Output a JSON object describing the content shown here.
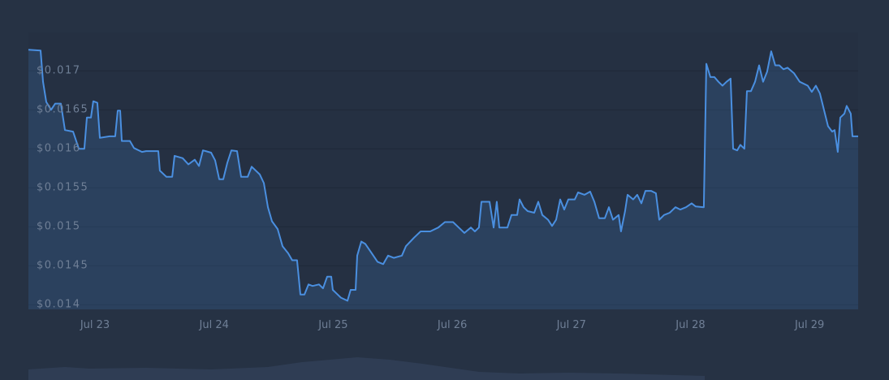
{
  "chart_data": {
    "type": "area",
    "color": "#4a8fe0",
    "xlim": [
      22.441,
      29.408
    ],
    "ylim": [
      0.01394,
      0.01744
    ],
    "xticks": [
      {
        "value": 23,
        "label": "Jul 23"
      },
      {
        "value": 24,
        "label": "Jul 24"
      },
      {
        "value": 25,
        "label": "Jul 25"
      },
      {
        "value": 26,
        "label": "Jul 26"
      },
      {
        "value": 27,
        "label": "Jul 27"
      },
      {
        "value": 28,
        "label": "Jul 28"
      },
      {
        "value": 29,
        "label": "Jul 29"
      }
    ],
    "yticks": [
      {
        "value": 0.014,
        "label": "$0.014"
      },
      {
        "value": 0.0145,
        "label": "$0.0145"
      },
      {
        "value": 0.015,
        "label": "$0.015"
      },
      {
        "value": 0.0155,
        "label": "$0.0155"
      },
      {
        "value": 0.016,
        "label": "$0.016"
      },
      {
        "value": 0.0165,
        "label": "$0.0165"
      },
      {
        "value": 0.017,
        "label": "$0.017"
      }
    ],
    "grid": true,
    "x": [
      22.441,
      22.543,
      22.564,
      22.591,
      22.632,
      22.666,
      22.714,
      22.748,
      22.816,
      22.864,
      22.911,
      22.932,
      22.966,
      22.986,
      23.02,
      23.041,
      23.123,
      23.17,
      23.191,
      23.211,
      23.225,
      23.293,
      23.327,
      23.395,
      23.429,
      23.532,
      23.545,
      23.6,
      23.648,
      23.668,
      23.736,
      23.784,
      23.838,
      23.873,
      23.907,
      23.975,
      24.009,
      24.043,
      24.077,
      24.111,
      24.145,
      24.193,
      24.227,
      24.282,
      24.316,
      24.384,
      24.418,
      24.452,
      24.486,
      24.534,
      24.575,
      24.622,
      24.656,
      24.697,
      24.725,
      24.759,
      24.793,
      24.827,
      24.881,
      24.915,
      24.95,
      24.984,
      24.997,
      25.031,
      25.065,
      25.12,
      25.147,
      25.188,
      25.202,
      25.236,
      25.27,
      25.324,
      25.372,
      25.42,
      25.461,
      25.509,
      25.577,
      25.611,
      25.679,
      25.734,
      25.815,
      25.883,
      25.938,
      26.006,
      26.054,
      26.102,
      26.156,
      26.19,
      26.224,
      26.245,
      26.313,
      26.347,
      26.374,
      26.395,
      26.463,
      26.497,
      26.545,
      26.565,
      26.599,
      26.633,
      26.688,
      26.722,
      26.756,
      26.804,
      26.838,
      26.872,
      26.906,
      26.94,
      26.974,
      27.029,
      27.056,
      27.111,
      27.158,
      27.193,
      27.233,
      27.281,
      27.315,
      27.349,
      27.397,
      27.417,
      27.451,
      27.472,
      27.519,
      27.553,
      27.588,
      27.622,
      27.67,
      27.71,
      27.738,
      27.778,
      27.826,
      27.874,
      27.915,
      27.963,
      28.01,
      28.044,
      28.112,
      28.133,
      28.167,
      28.201,
      28.235,
      28.269,
      28.303,
      28.337,
      28.358,
      28.392,
      28.419,
      28.453,
      28.474,
      28.508,
      28.542,
      28.576,
      28.61,
      28.644,
      28.678,
      28.712,
      28.746,
      28.781,
      28.815,
      28.869,
      28.917,
      28.985,
      29.019,
      29.053,
      29.087,
      29.121,
      29.155,
      29.19,
      29.21,
      29.237,
      29.258,
      29.292,
      29.312,
      29.346,
      29.36,
      29.408
    ],
    "values": [
      0.01727,
      0.01726,
      0.01686,
      0.0166,
      0.0165,
      0.01658,
      0.01658,
      0.01624,
      0.01622,
      0.016,
      0.016,
      0.0164,
      0.0164,
      0.01661,
      0.01659,
      0.01614,
      0.01616,
      0.01616,
      0.01649,
      0.01649,
      0.0161,
      0.0161,
      0.01601,
      0.01596,
      0.01597,
      0.01597,
      0.01572,
      0.01564,
      0.01564,
      0.01591,
      0.01588,
      0.0158,
      0.01586,
      0.01578,
      0.01598,
      0.01595,
      0.01585,
      0.01561,
      0.01561,
      0.01582,
      0.01598,
      0.01597,
      0.01564,
      0.01564,
      0.01577,
      0.01567,
      0.01556,
      0.01525,
      0.01507,
      0.01497,
      0.01475,
      0.01466,
      0.01457,
      0.01457,
      0.01413,
      0.01413,
      0.01426,
      0.01424,
      0.01426,
      0.01421,
      0.01436,
      0.01436,
      0.01419,
      0.01414,
      0.01409,
      0.01405,
      0.01419,
      0.01419,
      0.01463,
      0.01481,
      0.01478,
      0.01466,
      0.01455,
      0.01452,
      0.01463,
      0.0146,
      0.01463,
      0.01475,
      0.01486,
      0.01494,
      0.01494,
      0.01499,
      0.01506,
      0.01506,
      0.01499,
      0.01492,
      0.01499,
      0.01494,
      0.01499,
      0.01532,
      0.01532,
      0.01499,
      0.01532,
      0.01499,
      0.01499,
      0.01515,
      0.01515,
      0.01535,
      0.01525,
      0.0152,
      0.01518,
      0.01532,
      0.01515,
      0.01509,
      0.01501,
      0.01509,
      0.01535,
      0.01522,
      0.01535,
      0.01535,
      0.01544,
      0.01541,
      0.01545,
      0.01532,
      0.01511,
      0.01511,
      0.01525,
      0.01509,
      0.01515,
      0.01494,
      0.0152,
      0.01541,
      0.01535,
      0.01541,
      0.0153,
      0.01546,
      0.01546,
      0.01543,
      0.01509,
      0.01515,
      0.01518,
      0.01525,
      0.01522,
      0.01525,
      0.0153,
      0.01526,
      0.01525,
      0.01709,
      0.01692,
      0.01692,
      0.01686,
      0.01681,
      0.01686,
      0.0169,
      0.016,
      0.01598,
      0.01605,
      0.016,
      0.01674,
      0.01674,
      0.01686,
      0.01707,
      0.01686,
      0.01699,
      0.01725,
      0.01707,
      0.01707,
      0.01702,
      0.01704,
      0.01697,
      0.01686,
      0.01681,
      0.01673,
      0.01681,
      0.01671,
      0.0165,
      0.01629,
      0.01622,
      0.01624,
      0.01596,
      0.0164,
      0.01645,
      0.01655,
      0.01645,
      0.01616,
      0.01616
    ]
  }
}
